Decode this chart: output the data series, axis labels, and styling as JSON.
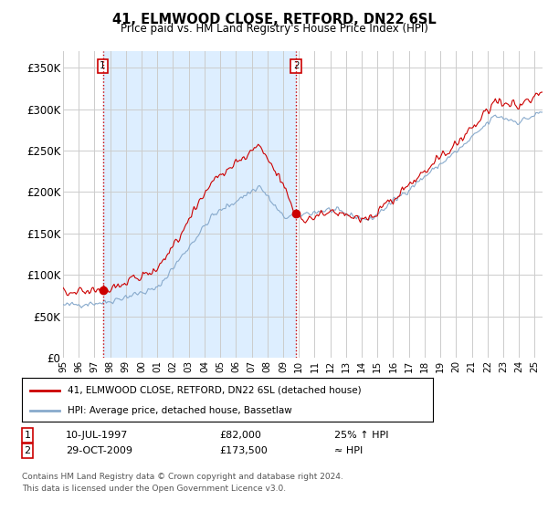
{
  "title": "41, ELMWOOD CLOSE, RETFORD, DN22 6SL",
  "subtitle": "Price paid vs. HM Land Registry's House Price Index (HPI)",
  "ylabel_ticks": [
    "£0",
    "£50K",
    "£100K",
    "£150K",
    "£200K",
    "£250K",
    "£300K",
    "£350K"
  ],
  "ytick_values": [
    0,
    50000,
    100000,
    150000,
    200000,
    250000,
    300000,
    350000
  ],
  "ylim": [
    0,
    370000
  ],
  "xlim_start": 1995.0,
  "xlim_end": 2025.5,
  "line1_color": "#cc0000",
  "line2_color": "#88aacc",
  "marker_color": "#cc0000",
  "vline_color": "#cc0000",
  "fill_color": "#ddeeff",
  "grid_color": "#cccccc",
  "bg_color": "#ffffff",
  "sale1_year": 1997.53,
  "sale1_price": 82000,
  "sale2_year": 2009.83,
  "sale2_price": 173500,
  "sale1_date": "10-JUL-1997",
  "sale1_amount": "£82,000",
  "sale1_hpi": "25% ↑ HPI",
  "sale2_date": "29-OCT-2009",
  "sale2_amount": "£173,500",
  "sale2_hpi": "≈ HPI",
  "legend1_text": "41, ELMWOOD CLOSE, RETFORD, DN22 6SL (detached house)",
  "legend2_text": "HPI: Average price, detached house, Bassetlaw",
  "footer": "Contains HM Land Registry data © Crown copyright and database right 2024.\nThis data is licensed under the Open Government Licence v3.0.",
  "xtick_labels": [
    "95",
    "96",
    "97",
    "98",
    "99",
    "00",
    "01",
    "02",
    "03",
    "04",
    "05",
    "06",
    "07",
    "08",
    "09",
    "10",
    "11",
    "12",
    "13",
    "14",
    "15",
    "16",
    "17",
    "18",
    "19",
    "20",
    "21",
    "22",
    "23",
    "24",
    "25"
  ],
  "xtick_years": [
    1995,
    1996,
    1997,
    1998,
    1999,
    2000,
    2001,
    2002,
    2003,
    2004,
    2005,
    2006,
    2007,
    2008,
    2009,
    2010,
    2011,
    2012,
    2013,
    2014,
    2015,
    2016,
    2017,
    2018,
    2019,
    2020,
    2021,
    2022,
    2023,
    2024,
    2025
  ]
}
